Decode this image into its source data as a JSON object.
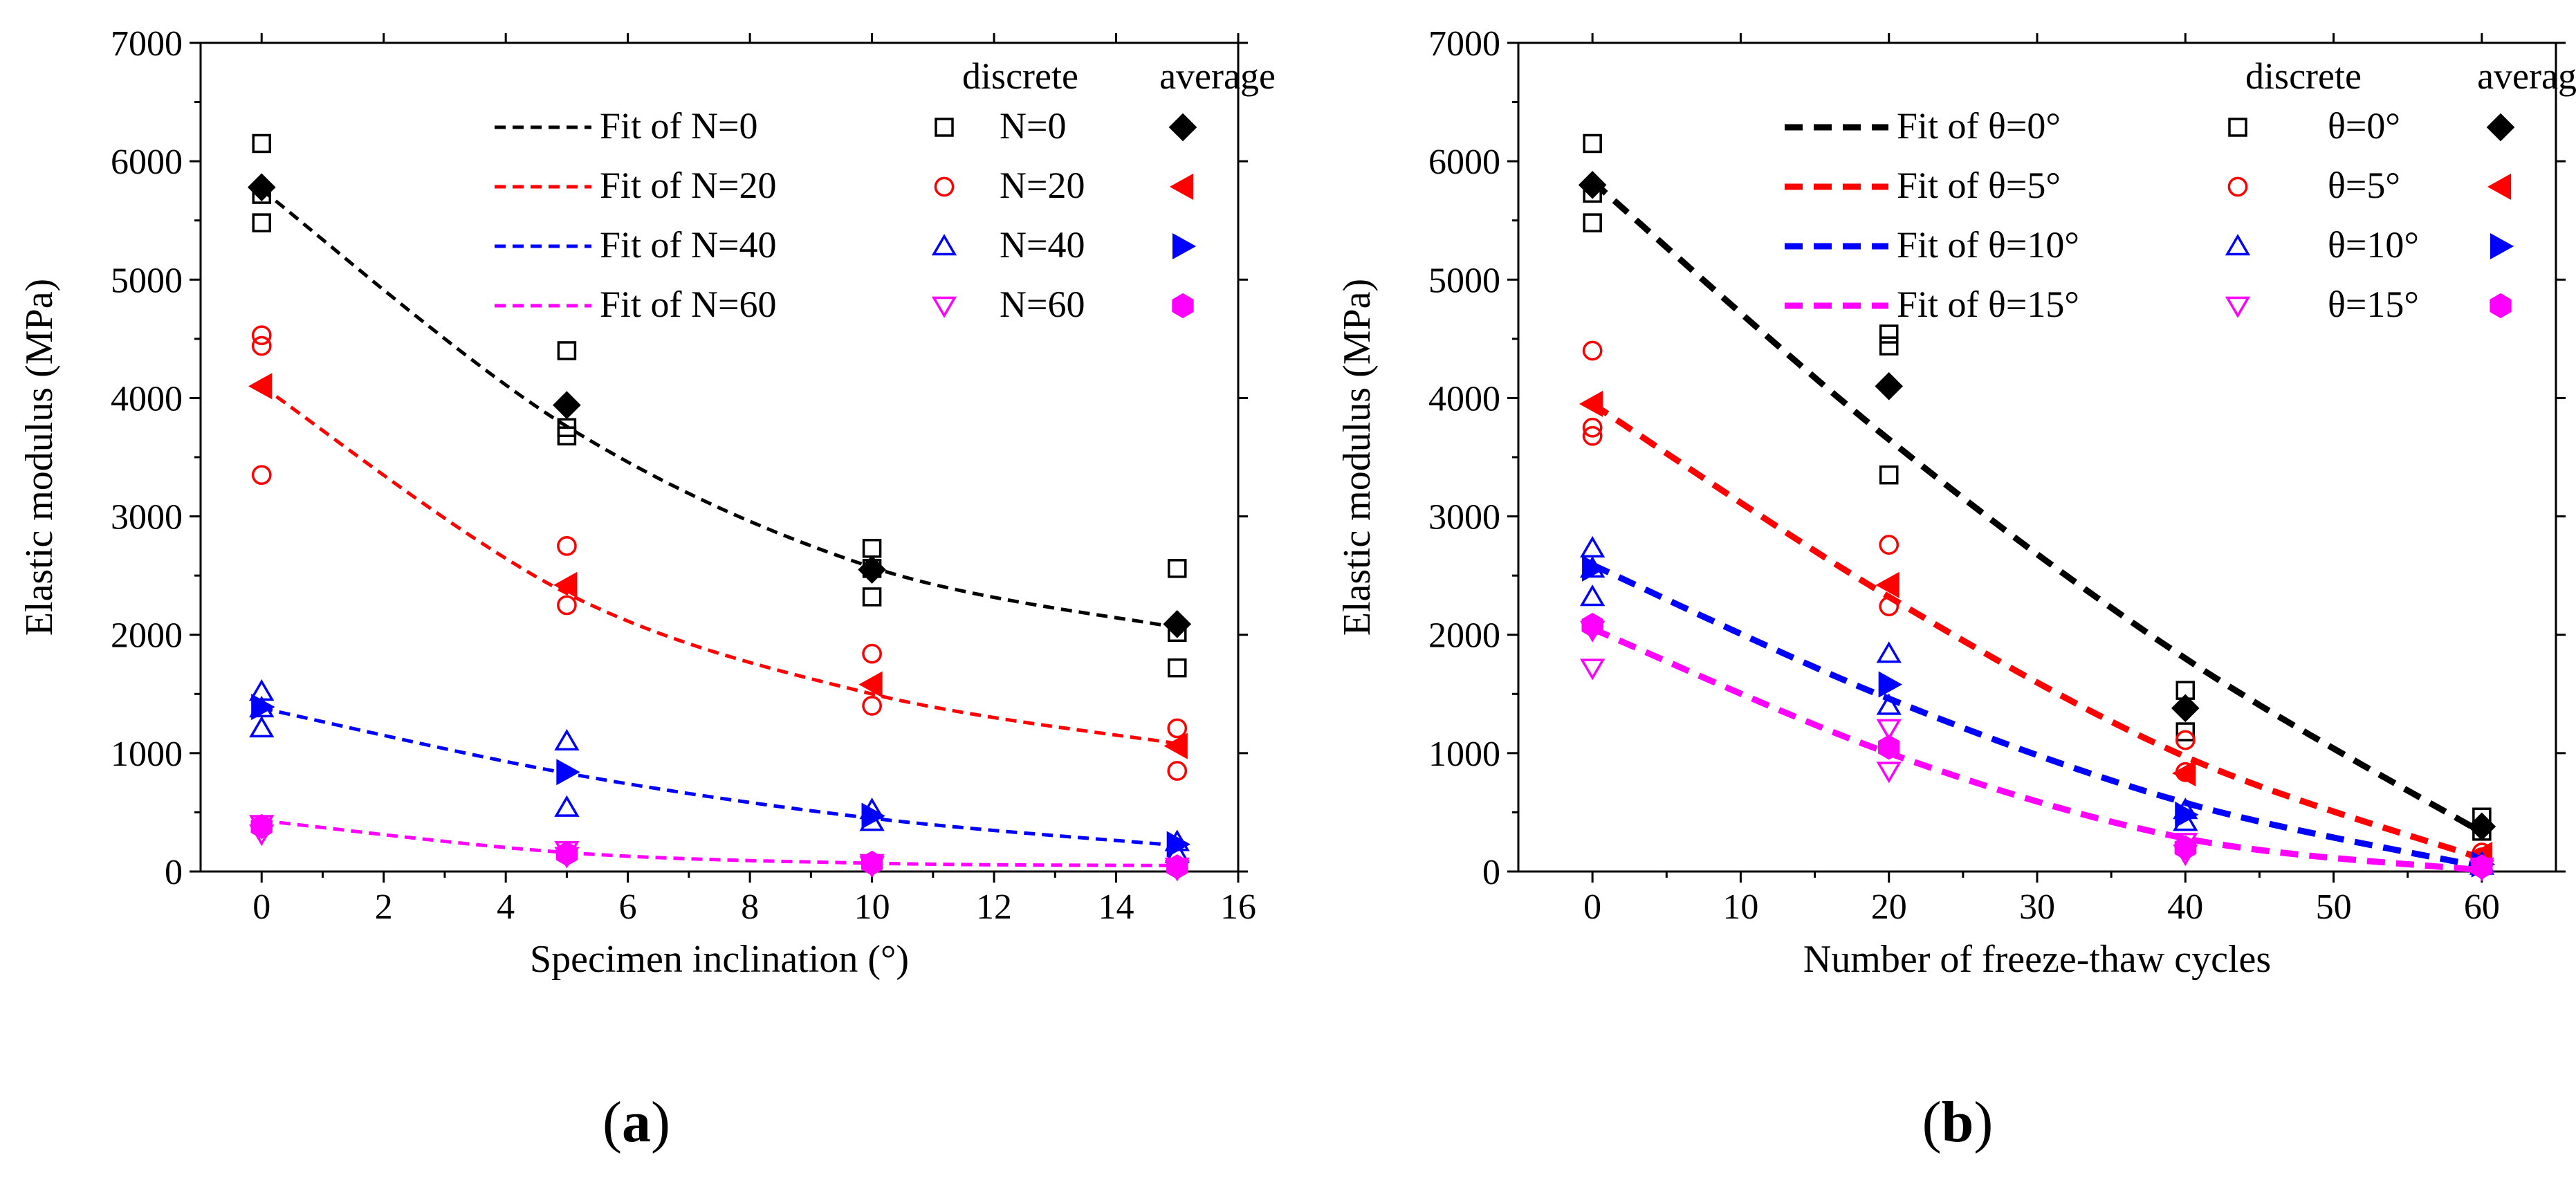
{
  "chart_data": [
    {
      "id": "a",
      "type": "scatter",
      "panel_label": "a",
      "xlabel": "Specimen  inclination (°)",
      "ylabel": "Elastic modulus (MPa)",
      "xlim": [
        -1,
        16
      ],
      "ylim": [
        0,
        7000
      ],
      "xticks": [
        0,
        2,
        4,
        6,
        8,
        10,
        12,
        14,
        16
      ],
      "yticks": [
        0,
        1000,
        2000,
        3000,
        4000,
        5000,
        6000,
        7000
      ],
      "legend_headers": {
        "discrete": "discrete",
        "average": "average"
      },
      "legend_position": "top-right",
      "series": [
        {
          "key": "N0",
          "color": "#000000",
          "avg_marker": "diamond",
          "fit_label": "Fit of N=0",
          "discrete_label": "N=0",
          "discrete_marker": "square",
          "fit_sym": "N",
          "fit_val": "=0",
          "x": [
            0,
            5,
            10,
            15
          ],
          "discrete": [
            [
              6150,
              5720,
              5480
            ],
            [
              4400,
              3750,
              3680
            ],
            [
              2730,
              2560,
              2320
            ],
            [
              2560,
              2020,
              1720
            ]
          ],
          "average": [
            5780,
            3940,
            2550,
            2090
          ],
          "fit": [
            5760,
            3760,
            2570,
            2060
          ]
        },
        {
          "key": "N20",
          "color": "#ff0000",
          "avg_marker": "tri-left",
          "fit_label": "Fit of N=20",
          "discrete_label": "N=20",
          "discrete_marker": "circle",
          "fit_sym": "N",
          "fit_val": "=20",
          "x": [
            0,
            5,
            10,
            15
          ],
          "discrete": [
            [
              4530,
              4440,
              3350
            ],
            [
              2750,
              2250
            ],
            [
              1840,
              1400
            ],
            [
              1210,
              850
            ]
          ],
          "average": [
            4100,
            2420,
            1580,
            1060
          ],
          "fit": [
            4100,
            2350,
            1500,
            1080
          ]
        },
        {
          "key": "N40",
          "color": "#0000ff",
          "avg_marker": "tri-right",
          "fit_label": "Fit of N=40",
          "discrete_label": "N=40",
          "discrete_marker": "tri-up",
          "fit_sym": "N",
          "fit_val": "=40",
          "x": [
            0,
            5,
            10,
            15
          ],
          "discrete": [
            [
              1520,
              1380,
              1210
            ],
            [
              1100,
              540
            ],
            [
              520,
              420
            ],
            [
              250,
              150
            ]
          ],
          "average": [
            1390,
            840,
            470,
            230
          ],
          "fit": [
            1380,
            830,
            450,
            220
          ]
        },
        {
          "key": "N60",
          "color": "#ff00ff",
          "avg_marker": "hexagon",
          "fit_label": "Fit of N=60",
          "discrete_label": "N=60",
          "discrete_marker": "tri-down",
          "fit_sym": "N",
          "fit_val": "=60",
          "x": [
            0,
            5,
            10,
            15
          ],
          "discrete": [
            [
              400,
              320
            ],
            [
              180,
              130
            ],
            [
              70,
              50
            ],
            [
              40,
              20
            ]
          ],
          "average": [
            380,
            150,
            70,
            40
          ],
          "fit": [
            430,
            160,
            70,
            50
          ]
        }
      ]
    },
    {
      "id": "b",
      "type": "scatter",
      "panel_label": "b",
      "xlabel": "Number of freeze-thaw cycles",
      "ylabel": "Elastic modulus (MPa)",
      "xlim": [
        -5,
        65
      ],
      "ylim": [
        0,
        7000
      ],
      "xticks": [
        0,
        10,
        20,
        30,
        40,
        50,
        60
      ],
      "yticks": [
        0,
        1000,
        2000,
        3000,
        4000,
        5000,
        6000,
        7000
      ],
      "legend_headers": {
        "discrete": "discrete",
        "average": "average"
      },
      "legend_position": "top-right",
      "series": [
        {
          "key": "T0",
          "color": "#000000",
          "avg_marker": "diamond",
          "fit_label": "Fit of θ=0°",
          "discrete_label": "θ=0°",
          "discrete_marker": "square",
          "fit_sym": "θ",
          "fit_val": "=0°",
          "x": [
            0,
            20,
            40,
            60
          ],
          "discrete": [
            [
              6150,
              5730,
              5480
            ],
            [
              4540,
              4440,
              3350
            ],
            [
              1530,
              1180
            ],
            [
              460,
              340
            ]
          ],
          "average": [
            5800,
            4100,
            1380,
            380
          ],
          "fit": [
            5830,
            3650,
            1800,
            330
          ]
        },
        {
          "key": "T5",
          "color": "#ff0000",
          "avg_marker": "tri-left",
          "fit_label": "Fit of θ=5°",
          "discrete_label": "θ=5°",
          "discrete_marker": "circle",
          "fit_sym": "θ",
          "fit_val": "=5°",
          "x": [
            0,
            20,
            40,
            60
          ],
          "discrete": [
            [
              4400,
              3750,
              3680
            ],
            [
              2760,
              2240
            ],
            [
              1110,
              840
            ],
            [
              160,
              120
            ]
          ],
          "average": [
            3950,
            2420,
            830,
            140
          ],
          "fit": [
            3950,
            2320,
            970,
            110
          ]
        },
        {
          "key": "T10",
          "color": "#0000ff",
          "avg_marker": "tri-right",
          "fit_label": "Fit of θ=10°",
          "discrete_label": "θ=10°",
          "discrete_marker": "tri-up",
          "fit_sym": "θ",
          "fit_val": "=10°",
          "x": [
            0,
            20,
            40,
            60
          ],
          "discrete": [
            [
              2730,
              2560,
              2320
            ],
            [
              1840,
              1400
            ],
            [
              520,
              420
            ],
            [
              70,
              50
            ]
          ],
          "average": [
            2560,
            1580,
            480,
            60
          ],
          "fit": [
            2590,
            1460,
            580,
            40
          ]
        },
        {
          "key": "T15",
          "color": "#ff00ff",
          "avg_marker": "hexagon",
          "fit_label": "Fit of θ=15°",
          "discrete_label": "θ=15°",
          "discrete_marker": "tri-down",
          "fit_sym": "θ",
          "fit_val": "=15°",
          "x": [
            0,
            20,
            40,
            60
          ],
          "discrete": [
            [
              2040,
              1720
            ],
            [
              1210,
              850
            ],
            [
              250,
              150
            ],
            [
              40,
              20
            ]
          ],
          "average": [
            2080,
            1050,
            200,
            40
          ],
          "fit": [
            2050,
            1000,
            280,
            10
          ]
        }
      ]
    }
  ]
}
